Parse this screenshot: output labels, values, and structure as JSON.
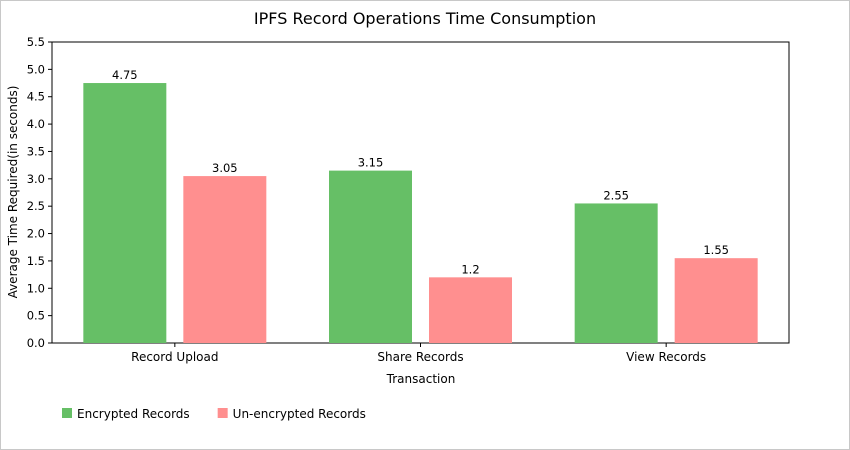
{
  "chart_data": {
    "type": "bar",
    "title": "IPFS Record Operations Time Consumption",
    "xlabel": "Transaction",
    "ylabel": "Average Time Required(in seconds)",
    "ylim": [
      0,
      5.5
    ],
    "yticks": [
      "0.0",
      "0.5",
      "1.0",
      "1.5",
      "2.0",
      "2.5",
      "3.0",
      "3.5",
      "4.0",
      "4.5",
      "5.0",
      "5.5"
    ],
    "categories": [
      "Record Upload",
      "Share Records",
      "View Records"
    ],
    "series": [
      {
        "name": "Encrypted Records",
        "values": [
          4.75,
          3.15,
          2.55
        ],
        "color": "#66bf66"
      },
      {
        "name": "Un-encrypted Records",
        "values": [
          3.05,
          1.2,
          1.55
        ],
        "color": "#ff8f8f"
      }
    ],
    "data_labels": [
      [
        "4.75",
        "3.15",
        "2.55"
      ],
      [
        "3.05",
        "1.2",
        "1.55"
      ]
    ],
    "grid": false,
    "legend_position": "bottom-left"
  }
}
